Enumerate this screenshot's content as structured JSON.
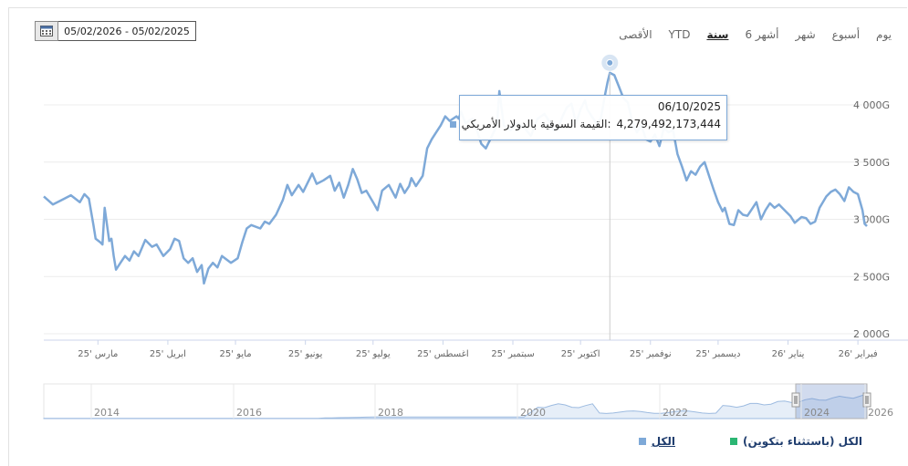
{
  "date_range": {
    "text": "05/02/2026 - 05/02/2025"
  },
  "ranges": [
    {
      "label": "يوم",
      "active": false
    },
    {
      "label": "أسبوع",
      "active": false
    },
    {
      "label": "شهر",
      "active": false
    },
    {
      "label": "6 أشهر",
      "active": false
    },
    {
      "label": "سنة",
      "active": true
    },
    {
      "label": "YTD",
      "active": false
    },
    {
      "label": "الأقصى",
      "active": false
    }
  ],
  "tooltip": {
    "date": "06/10/2025",
    "series_label": "القيمة السوقية بالدولار الأمريكي:",
    "value": "4,279,492,173,444"
  },
  "legend": [
    {
      "label": "الكل",
      "color": "#7ea9d8"
    },
    {
      "label": "الكل (باستثناء بتكوين)",
      "color": "#2bb673"
    }
  ],
  "chart_data": {
    "type": "line",
    "line_color": "#7ea9d8",
    "yticks": [
      {
        "v": 4000,
        "label": "4 000G"
      },
      {
        "v": 3500,
        "label": "3 500G"
      },
      {
        "v": 3000,
        "label": "3 000G"
      },
      {
        "v": 2500,
        "label": "2 500G"
      },
      {
        "v": 2000,
        "label": "2 000G"
      }
    ],
    "ylim": [
      2000,
      4000
    ],
    "xlim": [
      0,
      365
    ],
    "xticks": [
      {
        "d": 24,
        "label": "مارس '25"
      },
      {
        "d": 55,
        "label": "ابريل '25"
      },
      {
        "d": 85,
        "label": "مايو '25"
      },
      {
        "d": 116,
        "label": "يونيو '25"
      },
      {
        "d": 146,
        "label": "يوليو '25"
      },
      {
        "d": 177,
        "label": "اغسطس '25"
      },
      {
        "d": 208,
        "label": "سبتمبر '25"
      },
      {
        "d": 238,
        "label": "اكتوبر '25"
      },
      {
        "d": 269,
        "label": "نوفمبر '25"
      },
      {
        "d": 299,
        "label": "ديسمبر '25"
      },
      {
        "d": 330,
        "label": "يناير '26"
      },
      {
        "d": 361,
        "label": "فبراير '26"
      }
    ],
    "series": [
      {
        "points": [
          [
            0,
            3200
          ],
          [
            4,
            3130
          ],
          [
            8,
            3170
          ],
          [
            12,
            3210
          ],
          [
            16,
            3150
          ],
          [
            18,
            3220
          ],
          [
            20,
            3180
          ],
          [
            22,
            2950
          ],
          [
            23,
            2830
          ],
          [
            25,
            2800
          ],
          [
            26,
            2780
          ],
          [
            27,
            3100
          ],
          [
            29,
            2810
          ],
          [
            30,
            2830
          ],
          [
            31,
            2680
          ],
          [
            32,
            2560
          ],
          [
            34,
            2620
          ],
          [
            36,
            2680
          ],
          [
            38,
            2640
          ],
          [
            40,
            2720
          ],
          [
            42,
            2680
          ],
          [
            45,
            2820
          ],
          [
            48,
            2760
          ],
          [
            50,
            2780
          ],
          [
            53,
            2680
          ],
          [
            56,
            2740
          ],
          [
            58,
            2830
          ],
          [
            60,
            2810
          ],
          [
            62,
            2660
          ],
          [
            64,
            2620
          ],
          [
            66,
            2660
          ],
          [
            68,
            2540
          ],
          [
            70,
            2600
          ],
          [
            71,
            2440
          ],
          [
            73,
            2570
          ],
          [
            75,
            2620
          ],
          [
            77,
            2580
          ],
          [
            79,
            2680
          ],
          [
            83,
            2620
          ],
          [
            86,
            2660
          ],
          [
            88,
            2800
          ],
          [
            90,
            2920
          ],
          [
            92,
            2950
          ],
          [
            96,
            2920
          ],
          [
            98,
            2980
          ],
          [
            100,
            2960
          ],
          [
            103,
            3040
          ],
          [
            106,
            3170
          ],
          [
            108,
            3300
          ],
          [
            110,
            3210
          ],
          [
            113,
            3300
          ],
          [
            115,
            3240
          ],
          [
            119,
            3400
          ],
          [
            121,
            3310
          ],
          [
            124,
            3340
          ],
          [
            127,
            3380
          ],
          [
            129,
            3250
          ],
          [
            131,
            3320
          ],
          [
            133,
            3190
          ],
          [
            135,
            3300
          ],
          [
            137,
            3440
          ],
          [
            139,
            3350
          ],
          [
            141,
            3230
          ],
          [
            143,
            3250
          ],
          [
            146,
            3150
          ],
          [
            148,
            3080
          ],
          [
            150,
            3250
          ],
          [
            153,
            3300
          ],
          [
            156,
            3190
          ],
          [
            158,
            3310
          ],
          [
            160,
            3230
          ],
          [
            162,
            3290
          ],
          [
            163,
            3360
          ],
          [
            165,
            3290
          ],
          [
            168,
            3380
          ],
          [
            170,
            3620
          ],
          [
            172,
            3700
          ],
          [
            174,
            3760
          ],
          [
            176,
            3820
          ],
          [
            178,
            3900
          ],
          [
            180,
            3860
          ],
          [
            183,
            3900
          ],
          [
            184,
            3880
          ],
          [
            185,
            3940
          ],
          [
            187,
            3840
          ],
          [
            190,
            3880
          ],
          [
            192,
            3780
          ],
          [
            194,
            3660
          ],
          [
            196,
            3620
          ],
          [
            198,
            3700
          ],
          [
            200,
            3780
          ],
          [
            201,
            3840
          ],
          [
            202,
            4120
          ],
          [
            204,
            3820
          ],
          [
            207,
            3780
          ],
          [
            210,
            3840
          ],
          [
            213,
            3800
          ],
          [
            216,
            3730
          ],
          [
            219,
            3880
          ],
          [
            222,
            3920
          ],
          [
            224,
            3860
          ],
          [
            226,
            3780
          ],
          [
            228,
            3790
          ],
          [
            230,
            3900
          ],
          [
            232,
            3980
          ],
          [
            234,
            4010
          ],
          [
            236,
            3840
          ],
          [
            238,
            3960
          ],
          [
            240,
            4040
          ],
          [
            241,
            3960
          ],
          [
            243,
            3900
          ],
          [
            245,
            3840
          ],
          [
            247,
            3880
          ],
          [
            249,
            4100
          ],
          [
            250,
            4200
          ],
          [
            251,
            4280
          ],
          [
            253,
            4260
          ],
          [
            255,
            4160
          ],
          [
            257,
            4060
          ],
          [
            259,
            4020
          ],
          [
            261,
            3850
          ],
          [
            263,
            3760
          ],
          [
            265,
            3820
          ],
          [
            267,
            3700
          ],
          [
            269,
            3680
          ],
          [
            271,
            3740
          ],
          [
            273,
            3640
          ],
          [
            275,
            3800
          ],
          [
            277,
            3760
          ],
          [
            279,
            3780
          ],
          [
            281,
            3570
          ],
          [
            283,
            3460
          ],
          [
            285,
            3340
          ],
          [
            287,
            3420
          ],
          [
            289,
            3390
          ],
          [
            291,
            3460
          ],
          [
            293,
            3500
          ],
          [
            295,
            3380
          ],
          [
            297,
            3260
          ],
          [
            299,
            3150
          ],
          [
            301,
            3070
          ],
          [
            302,
            3100
          ],
          [
            304,
            2960
          ],
          [
            306,
            2950
          ],
          [
            308,
            3080
          ],
          [
            310,
            3040
          ],
          [
            312,
            3030
          ],
          [
            314,
            3090
          ],
          [
            316,
            3150
          ],
          [
            318,
            3000
          ],
          [
            320,
            3080
          ],
          [
            322,
            3140
          ],
          [
            324,
            3100
          ],
          [
            326,
            3130
          ],
          [
            329,
            3070
          ],
          [
            331,
            3030
          ],
          [
            333,
            2970
          ],
          [
            336,
            3020
          ],
          [
            338,
            3010
          ],
          [
            340,
            2960
          ],
          [
            342,
            2980
          ],
          [
            344,
            3100
          ],
          [
            347,
            3200
          ],
          [
            349,
            3240
          ],
          [
            351,
            3260
          ],
          [
            353,
            3220
          ],
          [
            355,
            3160
          ],
          [
            357,
            3280
          ],
          [
            359,
            3240
          ],
          [
            361,
            3220
          ],
          [
            363,
            3080
          ],
          [
            364,
            2960
          ],
          [
            365,
            2940
          ]
        ]
      }
    ],
    "navigator": {
      "xticks": [
        "2014",
        "2016",
        "2018",
        "2020",
        "2022",
        "2024",
        "2026"
      ]
    }
  }
}
